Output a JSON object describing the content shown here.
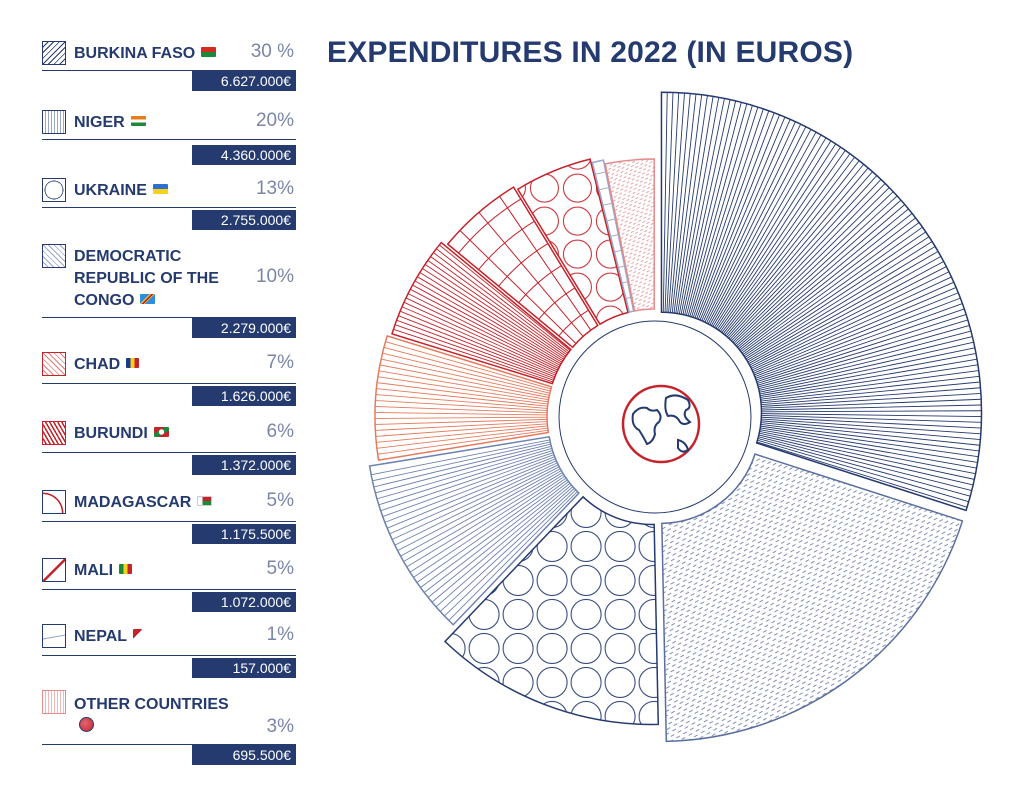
{
  "chart_data": {
    "type": "pie",
    "title": "EXPENDITURES IN 2022 (IN EUROS)",
    "unit": "€",
    "slices": [
      {
        "name": "BURKINA FASO",
        "percent": "30 %",
        "amount": "6.627.000€",
        "value": 6627000,
        "color": "#253a6e",
        "pattern": "radial-lines-dense",
        "flag": "bf"
      },
      {
        "name": "NIGER",
        "percent": "20%",
        "amount": "4.360.000€",
        "value": 4360000,
        "color": "#5b6f9f",
        "pattern": "dashes",
        "flag": "ne"
      },
      {
        "name": "UKRAINE",
        "percent": "13%",
        "amount": "2.755.000€",
        "value": 2755000,
        "color": "#253a6e",
        "pattern": "circles",
        "flag": "ua"
      },
      {
        "name": "DEMOCRATIC REPUBLIC OF THE CONGO",
        "percent": "10%",
        "amount": "2.279.000€",
        "value": 2279000,
        "color": "#6e82b0",
        "pattern": "radial-lines",
        "flag": "cd"
      },
      {
        "name": "CHAD",
        "percent": "7%",
        "amount": "1.626.000€",
        "value": 1626000,
        "color": "#e57a5c",
        "pattern": "radial-lines",
        "flag": "td"
      },
      {
        "name": "BURUNDI",
        "percent": "6%",
        "amount": "1.372.000€",
        "value": 1372000,
        "color": "#c4232b",
        "pattern": "radial-lines-dense",
        "flag": "bi"
      },
      {
        "name": "MADAGASCAR",
        "percent": "5%",
        "amount": "1.175.500€",
        "value": 1175500,
        "color": "#c4232b",
        "pattern": "arcs",
        "flag": "mg"
      },
      {
        "name": "MALI",
        "percent": "5%",
        "amount": "1.072.000€",
        "value": 1072000,
        "color": "#c4232b",
        "pattern": "circles",
        "flag": "ml"
      },
      {
        "name": "NEPAL",
        "percent": "1%",
        "amount": "157.000€",
        "value": 157000,
        "color": "#9aa6c6",
        "pattern": "rungs",
        "flag": "np"
      },
      {
        "name": "OTHER COUNTRIES",
        "percent": "3%",
        "amount": "695.500€",
        "value": 695500,
        "color": "#e58a8a",
        "pattern": "dashes",
        "flag": "globe"
      }
    ]
  }
}
